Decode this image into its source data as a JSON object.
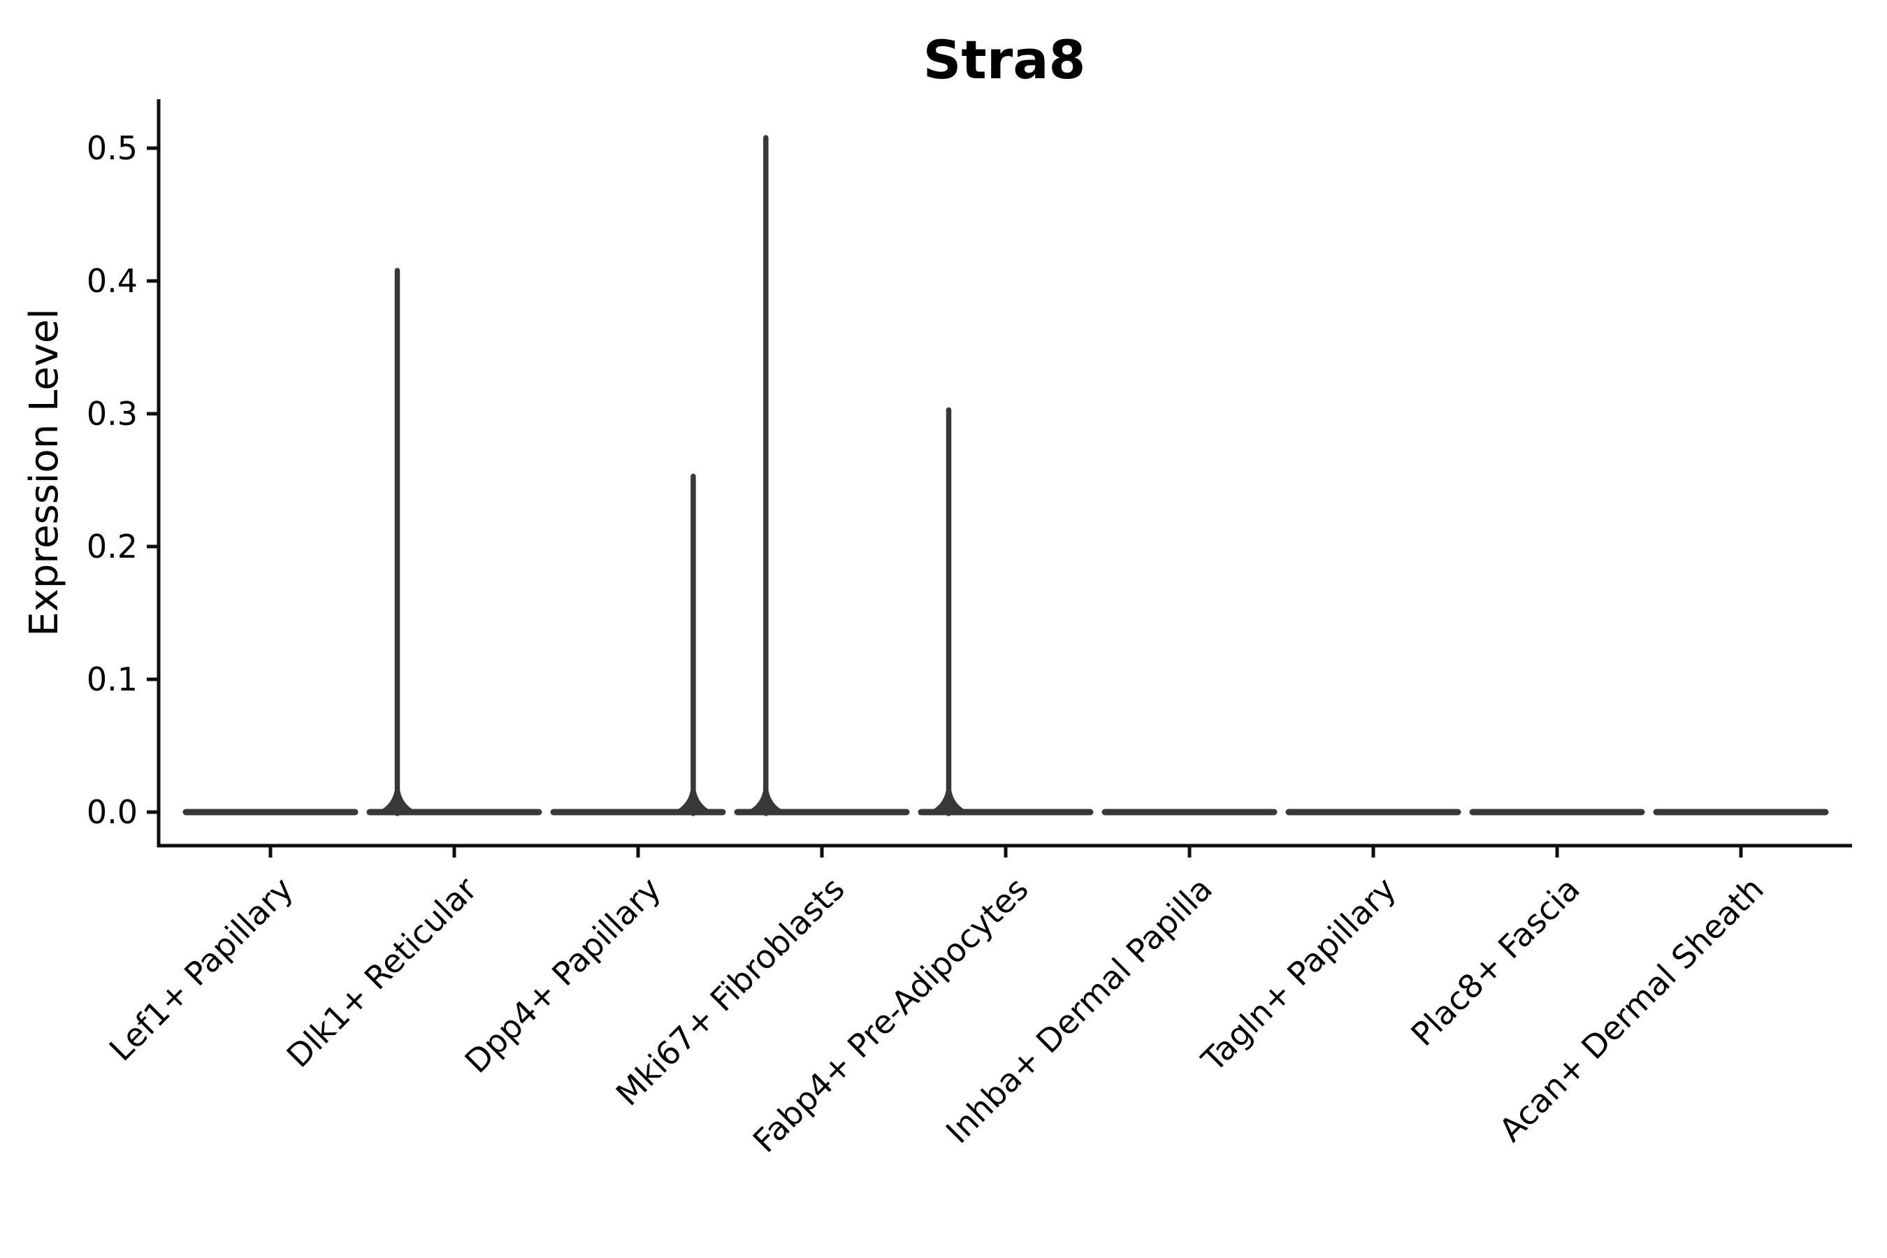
{
  "chart_data": {
    "type": "violin",
    "title": "Stra8",
    "ylabel": "Expression Level",
    "xlabel": "",
    "categories": [
      "Lef1+ Papillary",
      "Dlk1+ Reticular",
      "Dpp4+ Papillary",
      "Mki67+ Fibroblasts",
      "Fabp4+ Pre-Adipocytes",
      "Inhba+ Dermal Papilla",
      "Tagln+ Papillary",
      "Plac8+ Fascia",
      "Acan+ Dermal Sheath"
    ],
    "violins": [
      {
        "category": "Lef1+ Papillary",
        "bulk_at": 0.0,
        "max": 0.0,
        "has_spike": false,
        "spike_offset_frac": 0
      },
      {
        "category": "Dlk1+ Reticular",
        "bulk_at": 0.0,
        "max": 0.41,
        "has_spike": true,
        "spike_offset_frac": -0.31
      },
      {
        "category": "Dpp4+ Papillary",
        "bulk_at": 0.0,
        "max": 0.255,
        "has_spike": true,
        "spike_offset_frac": 0.3
      },
      {
        "category": "Mki67+ Fibroblasts",
        "bulk_at": 0.0,
        "max": 0.51,
        "has_spike": true,
        "spike_offset_frac": -0.305
      },
      {
        "category": "Fabp4+ Pre-Adipocytes",
        "bulk_at": 0.0,
        "max": 0.305,
        "has_spike": true,
        "spike_offset_frac": -0.31
      },
      {
        "category": "Inhba+ Dermal Papilla",
        "bulk_at": 0.0,
        "max": 0.0,
        "has_spike": false,
        "spike_offset_frac": 0
      },
      {
        "category": "Tagln+ Papillary",
        "bulk_at": 0.0,
        "max": 0.0,
        "has_spike": false,
        "spike_offset_frac": 0
      },
      {
        "category": "Plac8+ Fascia",
        "bulk_at": 0.0,
        "max": 0.0,
        "has_spike": false,
        "spike_offset_frac": 0
      },
      {
        "category": "Acan+ Dermal Sheath",
        "bulk_at": 0.0,
        "max": 0.0,
        "has_spike": false,
        "spike_offset_frac": 0
      }
    ],
    "series": [
      {
        "name": "max_expression",
        "values": [
          0,
          0.41,
          0.255,
          0.51,
          0.305,
          0,
          0,
          0,
          0
        ]
      }
    ],
    "yticks": [
      0.0,
      0.1,
      0.2,
      0.3,
      0.4,
      0.5
    ],
    "ytick_labels": [
      "0.0",
      "0.1",
      "0.2",
      "0.3",
      "0.4",
      "0.5"
    ],
    "ylim": [
      -0.025,
      0.537
    ],
    "grid": false,
    "legend": "none",
    "x_label_rotation_deg": 45
  },
  "colors": {
    "violin": "#383838",
    "axis": "#0e0e0e",
    "tick": "#0e0e0e",
    "text": "#000000",
    "background": "#ffffff"
  }
}
